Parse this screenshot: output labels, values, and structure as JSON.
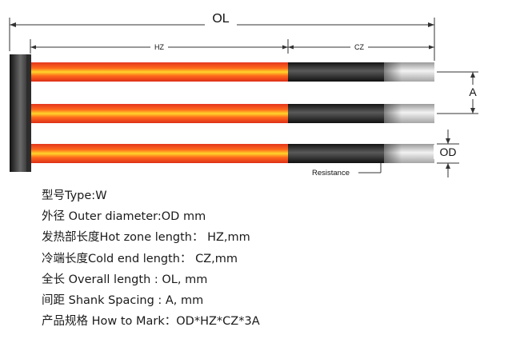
{
  "dimensions": {
    "overall": "OL",
    "hot_zone": "HZ",
    "cold_zone": "CZ",
    "spacing": "A",
    "outer_diameter": "OD",
    "resistance_label": "Resistance"
  },
  "colors": {
    "hot_zone": "#e8361c",
    "hot_zone_glow": "#ffd21f",
    "cold_zone": "#1c1c1c",
    "terminal": "#d6d6d6",
    "bridge": "#222222"
  },
  "specs": [
    "型号Type:W",
    "外径 Outer diameter:OD mm",
    "发热部长度Hot zone length： HZ,mm",
    "冷端长度Cold end length： CZ,mm",
    "全长 Overall length : OL, mm",
    "间距 Shank Spacing : A, mm",
    "产品规格 How to Mark：OD*HZ*CZ*3A"
  ]
}
